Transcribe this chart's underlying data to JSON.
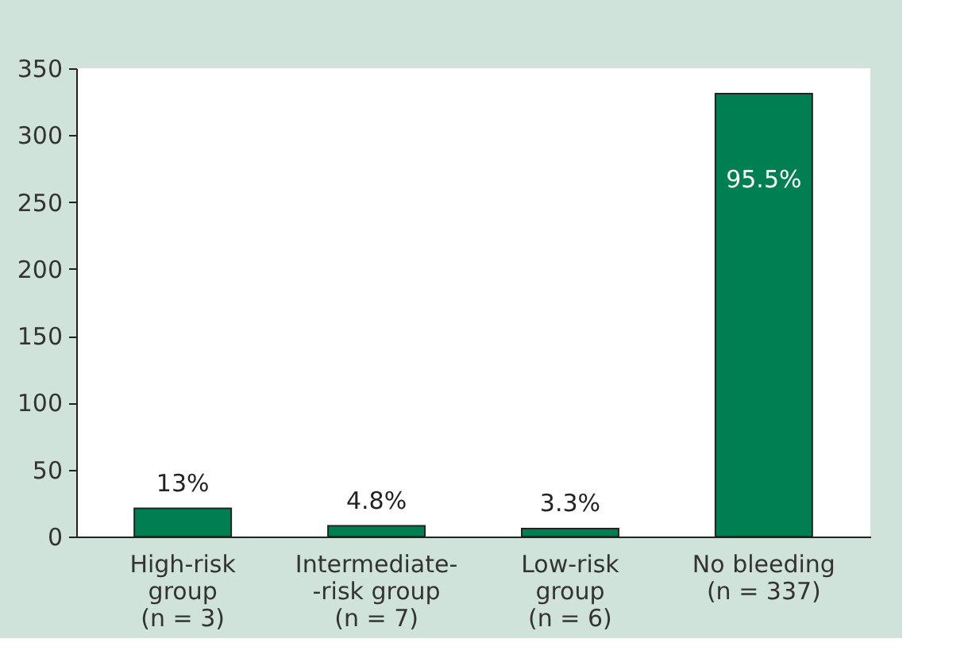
{
  "chart_data": {
    "type": "bar",
    "categories": [
      "High-risk\ngroup\n(n = 3)",
      "Intermediate-\n-risk group\n(n = 7)",
      "Low-risk\ngroup\n(n = 6)",
      "No bleeding\n(n = 337)"
    ],
    "values": [
      21,
      8,
      6,
      331
    ],
    "annotations": [
      {
        "text": "13%",
        "x": "High-risk\ngroup\n(n = 3)",
        "y": 21
      },
      {
        "text": "4.8%",
        "x": "Intermediate-\n-risk group\n(n = 7)",
        "y": 8
      },
      {
        "text": "3.3%",
        "x": "Low-risk\ngroup\n(n = 6)",
        "y": 6
      },
      {
        "text": "95.5%",
        "x": "No bleeding\n(n = 337)",
        "y": 331
      }
    ],
    "color": "#008052",
    "ylim": [
      0,
      350
    ],
    "yticks": [
      0,
      50,
      100,
      150,
      200,
      250,
      300,
      350
    ],
    "grid": false
  }
}
